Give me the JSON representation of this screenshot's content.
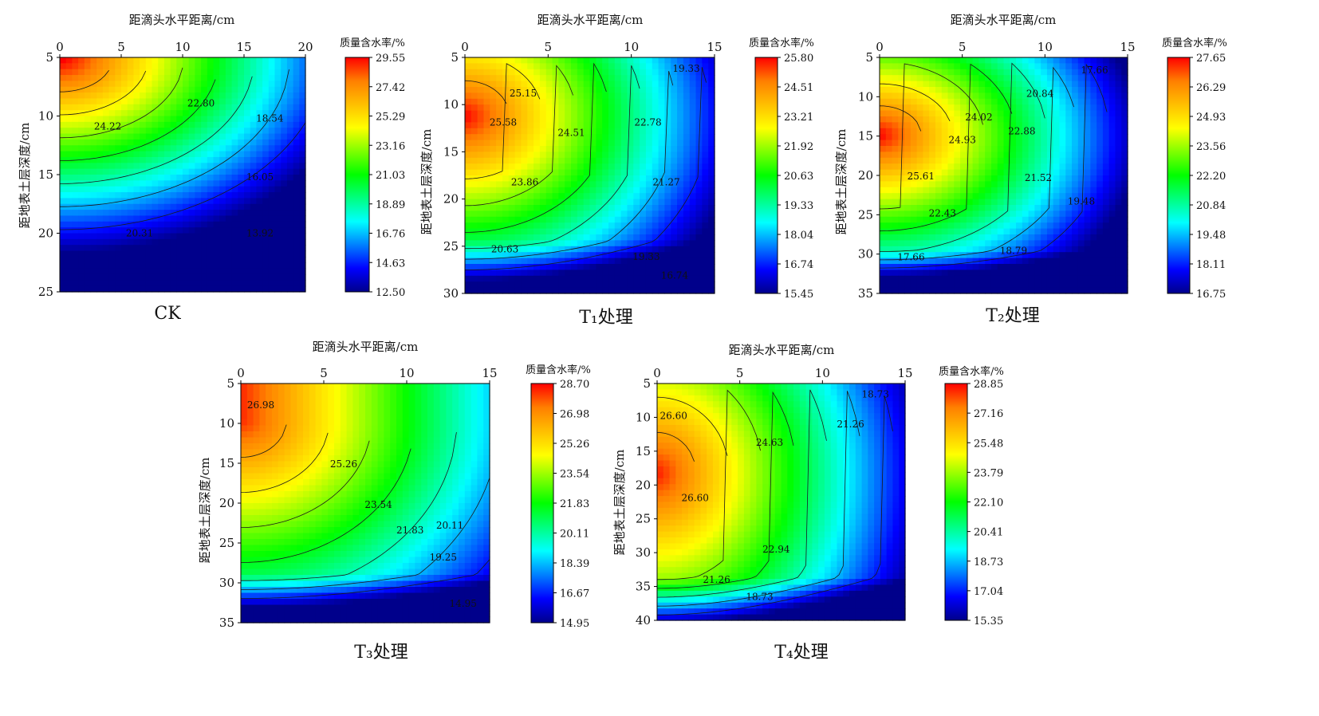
{
  "colorscale": [
    "#00008b",
    "#0000ff",
    "#0080ff",
    "#00ffff",
    "#00ff7f",
    "#00ff00",
    "#7fff00",
    "#ffff00",
    "#ffbf00",
    "#ff7f00",
    "#ff0000"
  ],
  "chart_data": [
    {
      "id": "CK",
      "type": "heatmap",
      "caption": "CK",
      "xlabel": "距滴头水平距离/cm",
      "ylabel": "距地表土层深度/cm",
      "xlim": [
        0,
        20
      ],
      "ylim": [
        5,
        25
      ],
      "x_ticks": [
        "0",
        "5",
        "10",
        "15",
        "20"
      ],
      "y_ticks": [
        "5",
        "10",
        "15",
        "20",
        "25"
      ],
      "colorbar_title": "质量含水率/%",
      "colorbar_ticks": [
        "29.55",
        "27.42",
        "25.29",
        "23.16",
        "21.03",
        "18.89",
        "16.76",
        "14.63",
        "12.50"
      ],
      "vmin": 12.5,
      "vmax": 29.55,
      "contour_labels": [
        {
          "text": "24.22",
          "x": 3.9,
          "y": 10.9
        },
        {
          "text": "22.80",
          "x": 11.5,
          "y": 8.9
        },
        {
          "text": "18.54",
          "x": 17.1,
          "y": 10.2
        },
        {
          "text": "16.05",
          "x": 16.3,
          "y": 15.2
        },
        {
          "text": "13.92",
          "x": 16.3,
          "y": 20.0
        },
        {
          "text": "20.31",
          "x": 6.5,
          "y": 20.0
        }
      ]
    },
    {
      "id": "T1",
      "type": "heatmap",
      "caption": "T₁处理",
      "xlabel": "距滴头水平距离/cm",
      "ylabel": "距地表土层深度/cm",
      "xlim": [
        0,
        15
      ],
      "ylim": [
        5,
        30
      ],
      "x_ticks": [
        "0",
        "5",
        "10",
        "15"
      ],
      "y_ticks": [
        "5",
        "10",
        "15",
        "20",
        "25",
        "30"
      ],
      "colorbar_title": "质量含水率/%",
      "colorbar_ticks": [
        "25.80",
        "24.51",
        "23.21",
        "21.92",
        "20.63",
        "19.33",
        "18.04",
        "16.74",
        "15.45"
      ],
      "vmin": 15.45,
      "vmax": 25.8,
      "contour_labels": [
        {
          "text": "25.15",
          "x": 3.5,
          "y": 8.8
        },
        {
          "text": "25.58",
          "x": 2.3,
          "y": 11.9
        },
        {
          "text": "24.51",
          "x": 6.4,
          "y": 13.0
        },
        {
          "text": "22.78",
          "x": 11.0,
          "y": 11.9
        },
        {
          "text": "19.33",
          "x": 13.3,
          "y": 6.2
        },
        {
          "text": "23.86",
          "x": 3.6,
          "y": 18.2
        },
        {
          "text": "21.27",
          "x": 12.1,
          "y": 18.2
        },
        {
          "text": "20.63",
          "x": 2.4,
          "y": 25.3
        },
        {
          "text": "19.33",
          "x": 10.9,
          "y": 26.1
        },
        {
          "text": "16.74",
          "x": 12.6,
          "y": 28.1
        }
      ]
    },
    {
      "id": "T2",
      "type": "heatmap",
      "caption": "T₂处理",
      "xlabel": "距滴头水平距离/cm",
      "ylabel": "距地表土层深度/cm",
      "xlim": [
        0,
        15
      ],
      "ylim": [
        5,
        35
      ],
      "x_ticks": [
        "0",
        "5",
        "10",
        "15"
      ],
      "y_ticks": [
        "5",
        "10",
        "15",
        "20",
        "25",
        "30",
        "35"
      ],
      "colorbar_title": "质量含水率/%",
      "colorbar_ticks": [
        "27.65",
        "26.29",
        "24.93",
        "23.56",
        "22.20",
        "20.84",
        "19.48",
        "18.11",
        "16.75"
      ],
      "vmin": 16.75,
      "vmax": 27.65,
      "contour_labels": [
        {
          "text": "17.66",
          "x": 13.0,
          "y": 6.6
        },
        {
          "text": "20.84",
          "x": 9.7,
          "y": 9.6
        },
        {
          "text": "24.02",
          "x": 6.0,
          "y": 12.6
        },
        {
          "text": "22.88",
          "x": 8.6,
          "y": 14.4
        },
        {
          "text": "24.93",
          "x": 5.0,
          "y": 15.5
        },
        {
          "text": "21.52",
          "x": 9.6,
          "y": 20.3
        },
        {
          "text": "25.61",
          "x": 2.5,
          "y": 20.1
        },
        {
          "text": "19.48",
          "x": 12.2,
          "y": 23.3
        },
        {
          "text": "22.43",
          "x": 3.8,
          "y": 24.8
        },
        {
          "text": "18.79",
          "x": 8.1,
          "y": 29.6
        },
        {
          "text": "17.66",
          "x": 1.9,
          "y": 30.4
        }
      ]
    },
    {
      "id": "T3",
      "type": "heatmap",
      "caption": "T₃处理",
      "xlabel": "距滴头水平距离/cm",
      "ylabel": "距地表土层深度/cm",
      "xlim": [
        0,
        15
      ],
      "ylim": [
        5,
        35
      ],
      "x_ticks": [
        "0",
        "5",
        "10",
        "15"
      ],
      "y_ticks": [
        "5",
        "10",
        "15",
        "20",
        "25",
        "30",
        "35"
      ],
      "colorbar_title": "质量含水率/%",
      "colorbar_ticks": [
        "28.70",
        "26.98",
        "25.26",
        "23.54",
        "21.83",
        "20.11",
        "18.39",
        "16.67",
        "14.95"
      ],
      "vmin": 14.95,
      "vmax": 28.7,
      "contour_labels": [
        {
          "text": "26.98",
          "x": 1.2,
          "y": 7.7
        },
        {
          "text": "25.26",
          "x": 6.2,
          "y": 15.1
        },
        {
          "text": "23.54",
          "x": 8.3,
          "y": 20.2
        },
        {
          "text": "21.83",
          "x": 10.2,
          "y": 23.4
        },
        {
          "text": "20.11",
          "x": 12.6,
          "y": 22.8
        },
        {
          "text": "19.25",
          "x": 12.2,
          "y": 26.8
        },
        {
          "text": "14.95",
          "x": 13.4,
          "y": 32.6
        }
      ]
    },
    {
      "id": "T4",
      "type": "heatmap",
      "caption": "T₄处理",
      "xlabel": "距滴头水平距离/cm",
      "ylabel": "距地表土层深度/cm",
      "xlim": [
        0,
        15
      ],
      "ylim": [
        5,
        40
      ],
      "x_ticks": [
        "0",
        "5",
        "10",
        "15"
      ],
      "y_ticks": [
        "5",
        "10",
        "15",
        "20",
        "25",
        "30",
        "35",
        "40"
      ],
      "colorbar_title": "质量含水率/%",
      "colorbar_ticks": [
        "28.85",
        "27.16",
        "25.48",
        "23.79",
        "22.10",
        "20.41",
        "18.73",
        "17.04",
        "15.35"
      ],
      "vmin": 15.35,
      "vmax": 28.85,
      "contour_labels": [
        {
          "text": "18.73",
          "x": 13.2,
          "y": 6.6
        },
        {
          "text": "26.60",
          "x": 1.0,
          "y": 9.8
        },
        {
          "text": "21.26",
          "x": 11.7,
          "y": 11.0
        },
        {
          "text": "24.63",
          "x": 6.8,
          "y": 13.7
        },
        {
          "text": "26.60",
          "x": 2.3,
          "y": 21.9
        },
        {
          "text": "22.94",
          "x": 7.2,
          "y": 29.5
        },
        {
          "text": "21.26",
          "x": 3.6,
          "y": 34.0
        },
        {
          "text": "18.73",
          "x": 6.2,
          "y": 36.5
        }
      ]
    }
  ]
}
